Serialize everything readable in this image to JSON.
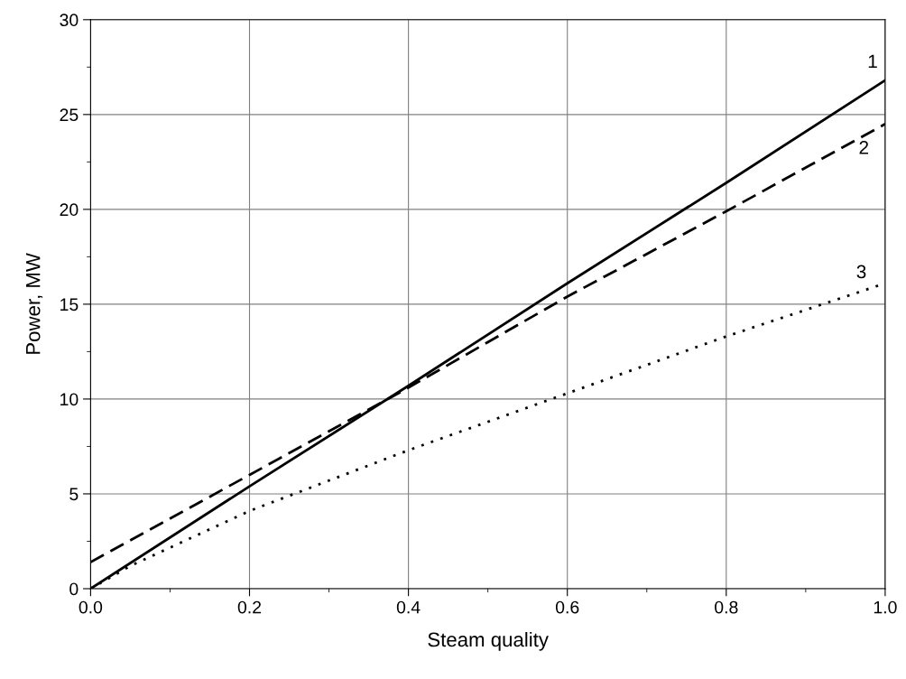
{
  "chart_data": {
    "type": "line",
    "xlabel": "Steam quality",
    "ylabel": "Power, MW",
    "series": [
      {
        "name": "1",
        "color": "#000000",
        "line_style": "solid",
        "x": [
          0.0,
          0.2,
          0.4,
          0.6,
          0.8,
          1.0
        ],
        "values": [
          0.0,
          5.4,
          10.7,
          16.1,
          21.4,
          26.8
        ]
      },
      {
        "name": "2",
        "color": "#000000",
        "line_style": "dashed",
        "x": [
          0.0,
          0.2,
          0.4,
          0.6,
          0.8,
          1.0
        ],
        "values": [
          1.4,
          6.0,
          10.6,
          15.4,
          19.9,
          24.5
        ]
      },
      {
        "name": "3",
        "color": "#000000",
        "line_style": "dotted",
        "x": [
          0.0,
          0.05,
          0.2,
          0.4,
          0.6,
          0.8,
          1.0
        ],
        "values": [
          0.0,
          1.2,
          4.1,
          7.3,
          10.3,
          13.3,
          16.1
        ]
      }
    ],
    "xlim": [
      0,
      1.0
    ],
    "ylim": [
      0,
      30
    ],
    "xticks": [
      {
        "value": 0,
        "label": "0.0"
      },
      0.2,
      0.4,
      0.6,
      0.8,
      {
        "value": 1,
        "label": "1.0"
      }
    ],
    "yticks": [
      0,
      5,
      10,
      15,
      20,
      25,
      30
    ],
    "grid": true,
    "legend": false,
    "marker": "none"
  }
}
